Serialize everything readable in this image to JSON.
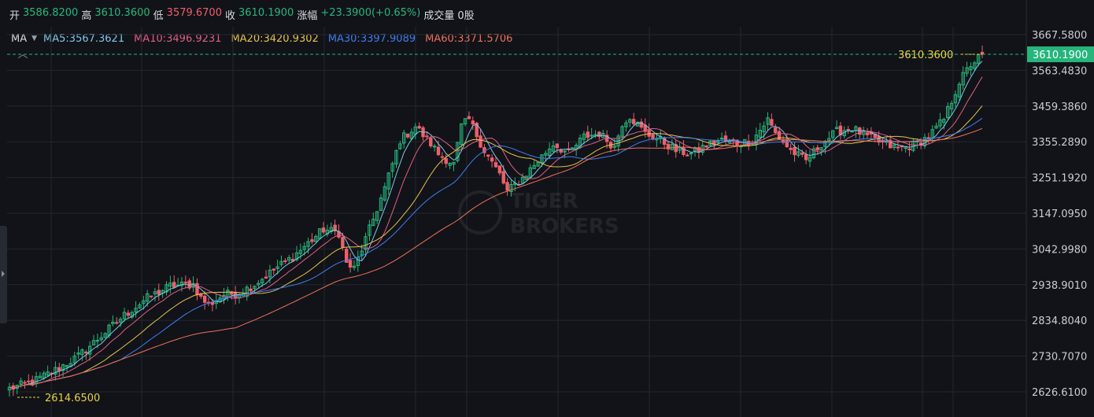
{
  "header": {
    "open_label": "开",
    "open_value": "3586.8200",
    "high_label": "高",
    "high_value": "3610.3600",
    "low_label": "低",
    "low_value": "3579.6700",
    "close_label": "收",
    "close_value": "3610.1900",
    "change_label": "涨幅",
    "change_value": "+23.3900(+0.65%)",
    "volume_label": "成交量",
    "volume_value": "0股"
  },
  "ma_bar": {
    "selector": "MA",
    "items": [
      {
        "text": "MA5:3567.3621",
        "color": "#7ec8e8"
      },
      {
        "text": "MA10:3496.9231",
        "color": "#e05f83"
      },
      {
        "text": "MA20:3420.9302",
        "color": "#e8c34a"
      },
      {
        "text": "MA30:3397.9089",
        "color": "#3f7ef0"
      },
      {
        "text": "MA60:3371.5706",
        "color": "#f0705a"
      }
    ]
  },
  "watermark": {
    "line1": "TIGER",
    "line2": "BROKERS"
  },
  "colors": {
    "up": "#26b67c",
    "down": "#f05e6b",
    "grid": "#23272e",
    "highlight": "#e8d33a",
    "last_price_bg": "#26b67c"
  },
  "chart_data": {
    "type": "candlestick",
    "y_ticks": [
      "3667.5800",
      "3563.4830",
      "3459.3860",
      "3355.2890",
      "3251.1920",
      "3147.0950",
      "3042.9980",
      "2938.9010",
      "2834.8040",
      "2730.7070",
      "2626.6100"
    ],
    "ylim": [
      2626.61,
      3667.58
    ],
    "last_price": "3610.1900",
    "high_marker": "3610.3600",
    "low_marker": "2614.6500",
    "ohlc_keypoints": [
      [
        0,
        2636
      ],
      [
        6,
        2655
      ],
      [
        12,
        2690
      ],
      [
        18,
        2730
      ],
      [
        24,
        2790
      ],
      [
        30,
        2850
      ],
      [
        36,
        2900
      ],
      [
        42,
        2935
      ],
      [
        48,
        2940
      ],
      [
        50,
        2900
      ],
      [
        52,
        2880
      ],
      [
        56,
        2910
      ],
      [
        60,
        2915
      ],
      [
        64,
        2940
      ],
      [
        70,
        2990
      ],
      [
        74,
        3020
      ],
      [
        78,
        3060
      ],
      [
        82,
        3100
      ],
      [
        86,
        3090
      ],
      [
        88,
        3000
      ],
      [
        90,
        2985
      ],
      [
        94,
        3100
      ],
      [
        98,
        3220
      ],
      [
        102,
        3360
      ],
      [
        106,
        3400
      ],
      [
        110,
        3350
      ],
      [
        112,
        3320
      ],
      [
        116,
        3290
      ],
      [
        118,
        3400
      ],
      [
        120,
        3420
      ],
      [
        124,
        3330
      ],
      [
        128,
        3260
      ],
      [
        130,
        3210
      ],
      [
        134,
        3250
      ],
      [
        138,
        3300
      ],
      [
        142,
        3350
      ],
      [
        146,
        3320
      ],
      [
        150,
        3370
      ],
      [
        154,
        3380
      ],
      [
        158,
        3340
      ],
      [
        160,
        3410
      ],
      [
        162,
        3430
      ],
      [
        166,
        3380
      ],
      [
        170,
        3360
      ],
      [
        174,
        3330
      ],
      [
        178,
        3320
      ],
      [
        182,
        3345
      ],
      [
        186,
        3360
      ],
      [
        190,
        3350
      ],
      [
        194,
        3360
      ],
      [
        198,
        3420
      ],
      [
        200,
        3380
      ],
      [
        204,
        3330
      ],
      [
        208,
        3300
      ],
      [
        212,
        3350
      ],
      [
        216,
        3385
      ],
      [
        220,
        3395
      ],
      [
        224,
        3370
      ],
      [
        228,
        3350
      ],
      [
        232,
        3335
      ],
      [
        236,
        3345
      ],
      [
        240,
        3370
      ],
      [
        244,
        3420
      ],
      [
        248,
        3530
      ],
      [
        251,
        3580
      ],
      [
        254,
        3610
      ]
    ],
    "ma_values_at_last": {
      "MA5": 3567.3621,
      "MA10": 3496.9231,
      "MA20": 3420.9302,
      "MA30": 3397.9089,
      "MA60": 3371.5706
    }
  }
}
